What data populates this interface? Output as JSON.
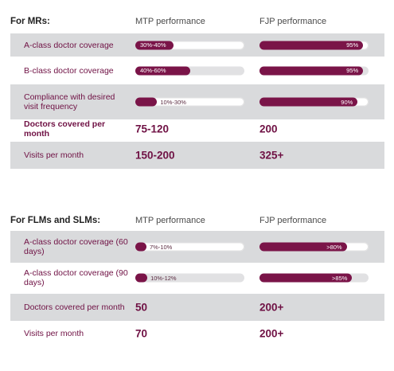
{
  "colors": {
    "accent": "#7a1448",
    "row_shade": "#d9dadc"
  },
  "chart_data": [
    {
      "type": "table",
      "section_title": "For MRs:",
      "columns": [
        "MTP performance",
        "FJP performance"
      ],
      "rows": [
        {
          "label": "A-class doctor coverage",
          "kind": "bar",
          "mtp": {
            "text": "30%-40%",
            "value": 35
          },
          "fjp": {
            "text": "95%",
            "value": 95
          }
        },
        {
          "label": "B-class doctor coverage",
          "kind": "bar",
          "mtp": {
            "text": "40%-60%",
            "value": 50
          },
          "fjp": {
            "text": "95%",
            "value": 95
          }
        },
        {
          "label": "Compliance with desired visit frequency",
          "kind": "bar",
          "mtp": {
            "text": "10%-30%",
            "value": 20
          },
          "fjp": {
            "text": "90%",
            "value": 90
          }
        },
        {
          "label": "Doctors covered per month",
          "kind": "value",
          "mtp": {
            "text": "75-120"
          },
          "fjp": {
            "text": "200"
          }
        },
        {
          "label": "Visits per month",
          "kind": "value",
          "mtp": {
            "text": "150-200"
          },
          "fjp": {
            "text": "325+"
          }
        }
      ]
    },
    {
      "type": "table",
      "section_title": "For FLMs and SLMs:",
      "columns": [
        "MTP performance",
        "FJP performance"
      ],
      "rows": [
        {
          "label": "A-class doctor coverage (60 days)",
          "kind": "bar",
          "mtp": {
            "text": "7%-10%",
            "value": 8.5
          },
          "fjp": {
            "text": ">80%",
            "value": 80
          }
        },
        {
          "label": "A-class doctor coverage (90 days)",
          "kind": "bar",
          "mtp": {
            "text": "10%-12%",
            "value": 11
          },
          "fjp": {
            "text": ">85%",
            "value": 85
          }
        },
        {
          "label": "Doctors covered per month",
          "kind": "value",
          "mtp": {
            "text": "50"
          },
          "fjp": {
            "text": "200+"
          }
        },
        {
          "label": "Visits per month",
          "kind": "value",
          "mtp": {
            "text": "70"
          },
          "fjp": {
            "text": "200+"
          }
        }
      ]
    }
  ]
}
